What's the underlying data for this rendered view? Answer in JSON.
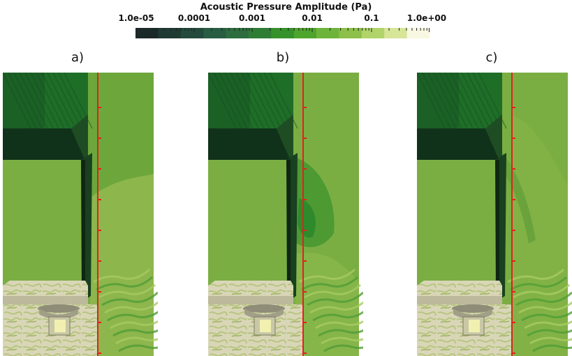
{
  "colorbar": {
    "title": "Acoustic Pressure Amplitude (Pa)",
    "tick_labels": [
      "1.0e-05",
      "0.0001",
      "0.001",
      "0.01",
      "0.1",
      "1.0e+00"
    ],
    "colors": [
      "#1b2a28",
      "#1f3a33",
      "#234a3d",
      "#285c43",
      "#2c6c3f",
      "#2f7d35",
      "#35922b",
      "#4ea52c",
      "#6fb43a",
      "#8cc04a",
      "#b0d46a",
      "#d6e597",
      "#f8f7e1"
    ]
  },
  "panels": [
    {
      "label": "a)"
    },
    {
      "label": "b)"
    },
    {
      "label": "c)"
    }
  ]
}
